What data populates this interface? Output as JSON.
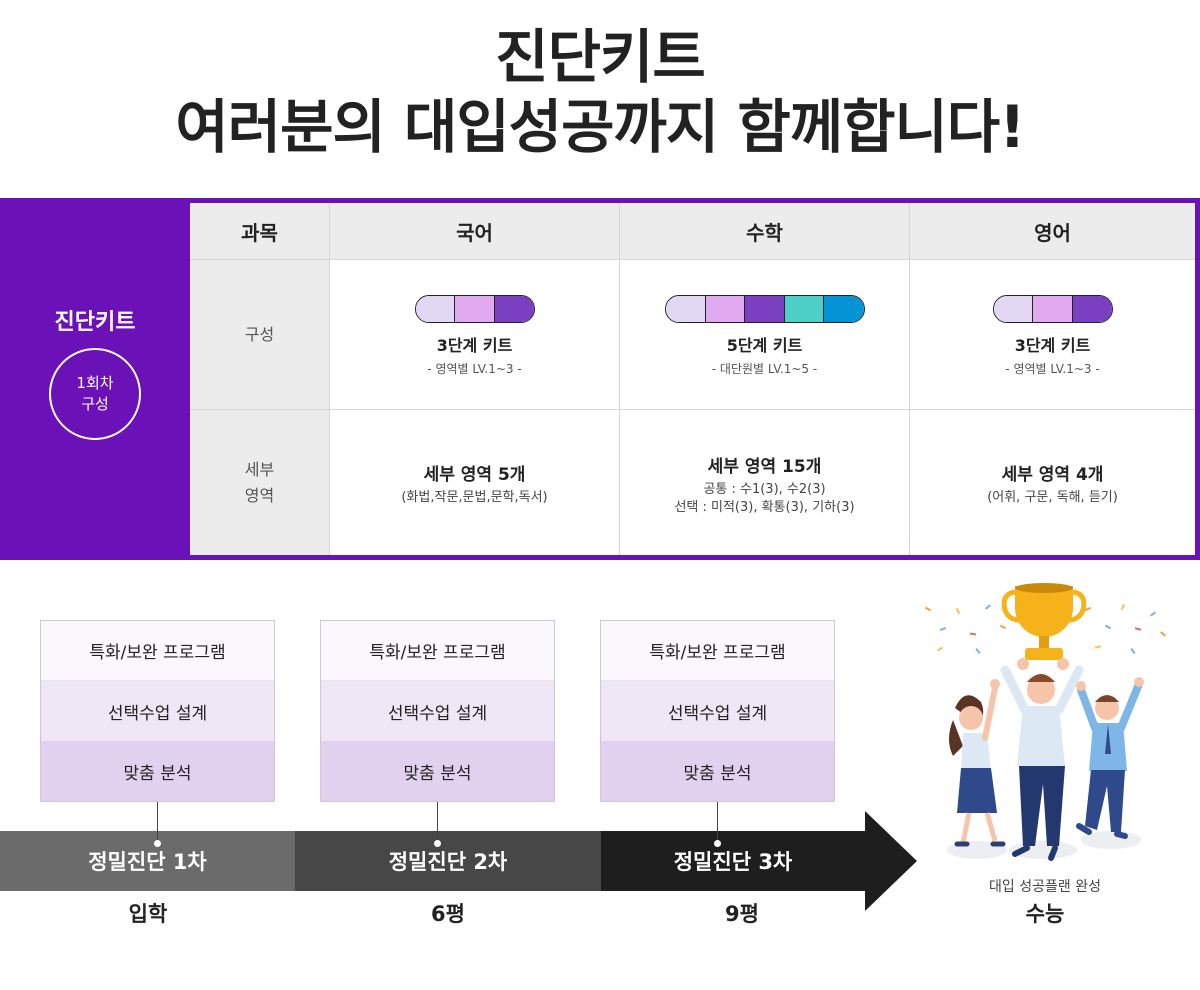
{
  "headline": {
    "line1": "진단키트",
    "line2": "여러분의 대입성공까지 함께합니다!"
  },
  "kit": {
    "side_title": "진단키트",
    "side_badge_line1": "1회차",
    "side_badge_line2": "구성",
    "headers": {
      "subject": "과목",
      "korean": "국어",
      "math": "수학",
      "english": "영어"
    },
    "row_labels": {
      "composition": "구성",
      "detail_line1": "세부",
      "detail_line2": "영역"
    },
    "composition": {
      "korean": {
        "name": "3단계 키트",
        "sub": "- 영역별 LV.1~3 -",
        "levels": 3
      },
      "math": {
        "name": "5단계 키트",
        "sub": "- 대단원별 LV.1~5 -",
        "levels": 5
      },
      "english": {
        "name": "3단계 키트",
        "sub": "- 영역별 LV.1~3 -",
        "levels": 3
      }
    },
    "level_colors": [
      "#e3d8f3",
      "#e1a9ef",
      "#7b3fc2",
      "#4ccfc6",
      "#0494d6"
    ],
    "detail": {
      "korean": {
        "title": "세부 영역 5개",
        "desc": "(화법,작문,문법,문학,독서)"
      },
      "math": {
        "title": "세부 영역 15개",
        "desc1": "공통 : 수1(3), 수2(3)",
        "desc2": "선택 : 미적(3), 확통(3), 기하(3)"
      },
      "english": {
        "title": "세부 영역 4개",
        "desc": "(어휘, 구문, 독해, 듣기)"
      }
    }
  },
  "timeline": {
    "stack_items": [
      "특화/보완 프로그램",
      "선택수업 설계",
      "맞춤 분석"
    ],
    "stages": [
      {
        "label": "정밀진단 1차",
        "time": "입학"
      },
      {
        "label": "정밀진단 2차",
        "time": "6평"
      },
      {
        "label": "정밀진단 3차",
        "time": "9평"
      }
    ],
    "goal": {
      "sub": "대입 성공플랜 완성",
      "main": "수능"
    }
  },
  "colors": {
    "brand_purple": "#6b11b8",
    "band_1": "#6b6b6b",
    "band_2": "#474747",
    "band_3": "#1e1e1e"
  }
}
